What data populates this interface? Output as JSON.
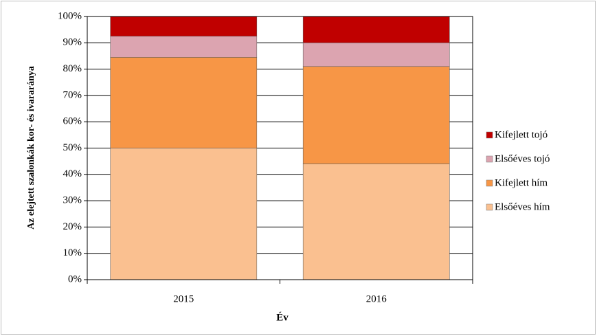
{
  "chart_data": {
    "type": "stacked_bar",
    "categories": [
      "2015",
      "2016"
    ],
    "series": [
      {
        "name": "Elsőéves hím",
        "color": "#fac090",
        "values": [
          50,
          44
        ]
      },
      {
        "name": "Kifejlett hím",
        "color": "#f79646",
        "values": [
          34.5,
          37
        ]
      },
      {
        "name": "Elsőéves tojó",
        "color": "#dca4b0",
        "values": [
          8,
          9
        ]
      },
      {
        "name": "Kifejlett tojó",
        "color": "#c00000",
        "values": [
          7.5,
          10
        ]
      }
    ],
    "ylim": [
      0,
      100
    ],
    "yticks": [
      {
        "value": 0,
        "label": "0%"
      },
      {
        "value": 10,
        "label": "10%"
      },
      {
        "value": 20,
        "label": "20%"
      },
      {
        "value": 30,
        "label": "30%"
      },
      {
        "value": 40,
        "label": "40%"
      },
      {
        "value": 50,
        "label": "50%"
      },
      {
        "value": 60,
        "label": "60%"
      },
      {
        "value": 70,
        "label": "70%"
      },
      {
        "value": 80,
        "label": "80%"
      },
      {
        "value": 90,
        "label": "90%"
      },
      {
        "value": 100,
        "label": "100%"
      }
    ],
    "y_label": "Az elejtett szalonkák kor- és ivararánya",
    "x_label": "Év",
    "grid": true
  }
}
